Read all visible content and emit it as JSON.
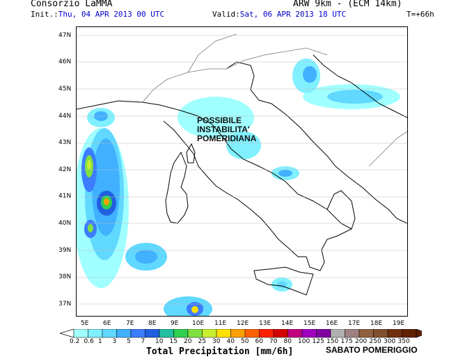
{
  "header": {
    "org": "Consorzio LaMMA",
    "model": "ARW 9km - (ECM 14km)",
    "init_prefix": "Init.:",
    "init_date": "Thu, 04 APR 2013  00 UTC",
    "valid_prefix": "Valid:",
    "valid_date": "Sat, 06 APR 2013  18 UTC",
    "lead": "T=+66h"
  },
  "map": {
    "lat_ticks": [
      "47N",
      "46N",
      "45N",
      "44N",
      "43N",
      "42N",
      "41N",
      "40N",
      "39N",
      "38N",
      "37N"
    ],
    "lon_ticks": [
      "5E",
      "6E",
      "7E",
      "8E",
      "9E",
      "10E",
      "11E",
      "12E",
      "13E",
      "14E",
      "15E",
      "16E",
      "17E",
      "18E",
      "19E"
    ],
    "annotation": [
      "POSSIBILE",
      "INSTABILITA'",
      "POMERIDIANA"
    ]
  },
  "colorbar": {
    "labels": [
      "0.2",
      "0.6",
      "1",
      "3",
      "5",
      "7",
      "10",
      "15",
      "20",
      "25",
      "30",
      "40",
      "50",
      "60",
      "70",
      "80",
      "100",
      "125",
      "150",
      "175",
      "200",
      "250",
      "300",
      "350"
    ],
    "colors": [
      "#a0ffff",
      "#80f0ff",
      "#60d8ff",
      "#40b0ff",
      "#3c7cff",
      "#2060e0",
      "#22c0a0",
      "#30d050",
      "#80e040",
      "#c8ee30",
      "#ffe000",
      "#ffa000",
      "#ff6000",
      "#ff2000",
      "#d00000",
      "#c00080",
      "#a000c0",
      "#8000a0",
      "#b0b0b0",
      "#a08080",
      "#906040",
      "#805030",
      "#703010",
      "#602000"
    ],
    "title": "Total Precipitation [mm/6h]",
    "note": "SABATO POMERIGGIO"
  }
}
